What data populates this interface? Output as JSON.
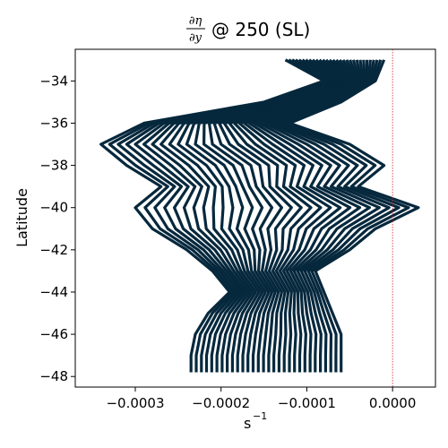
{
  "chart_data": {
    "type": "line",
    "title": {
      "fraction_numerator": "∂η",
      "fraction_denominator": "∂y",
      "suffix": "@ 250 (SL)"
    },
    "xlabel": {
      "base": "s",
      "exponent": "−1"
    },
    "ylabel": "Latitude",
    "xlim": [
      -0.00037,
      5e-05
    ],
    "ylim": [
      -48.5,
      -32.5
    ],
    "x_ticks": [
      {
        "value": -0.0003,
        "label": "−0.0003"
      },
      {
        "value": -0.0002,
        "label": "−0.0002"
      },
      {
        "value": -0.0001,
        "label": "−0.0001"
      },
      {
        "value": 0.0,
        "label": "0.0000"
      }
    ],
    "y_ticks": [
      {
        "value": -34,
        "label": "−34"
      },
      {
        "value": -36,
        "label": "−36"
      },
      {
        "value": -38,
        "label": "−38"
      },
      {
        "value": -40,
        "label": "−40"
      },
      {
        "value": -42,
        "label": "−42"
      },
      {
        "value": -44,
        "label": "−44"
      },
      {
        "value": -46,
        "label": "−46"
      },
      {
        "value": -48,
        "label": "−48"
      }
    ],
    "grid": false,
    "line_color": "#06283d",
    "zero_line": {
      "x": 0.0,
      "color": "#d62728",
      "style": "dotted"
    },
    "latitude": [
      -33,
      -34,
      -35,
      -36,
      -37,
      -38,
      -39,
      -40,
      -41,
      -42,
      -43,
      -44,
      -45,
      -46,
      -47,
      -47.8
    ],
    "profiles_first": {
      "name": "",
      "x": [
        -0.000125,
        -8e-05,
        -0.00015,
        -0.00029,
        -0.00034,
        -0.00031,
        -0.00027,
        -0.0003,
        -0.00028,
        -0.00024,
        -0.00021,
        -0.00019,
        -0.000215,
        -0.00023,
        -0.000235,
        -0.000235
      ]
    },
    "profiles_last": {
      "name": "",
      "x": [
        -1e-05,
        -2e-05,
        -6e-05,
        -0.00012,
        -5e-05,
        -1e-05,
        -4e-05,
        3e-05,
        -2e-05,
        -5e-05,
        -9e-05,
        -8e-05,
        -7e-05,
        -6e-05,
        -6e-05,
        -6e-05
      ]
    },
    "profile_count": 30
  }
}
